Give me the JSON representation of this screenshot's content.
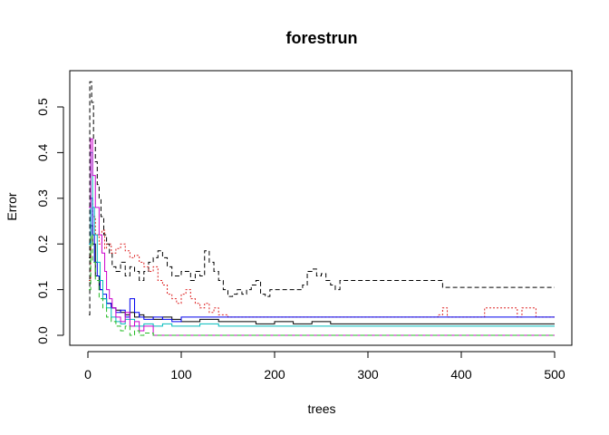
{
  "chart_data": {
    "type": "line",
    "title": "forestrun",
    "xlabel": "trees",
    "ylabel": "Error",
    "xlim": [
      0,
      500
    ],
    "ylim": [
      0,
      0.55
    ],
    "x_ticks": [
      0,
      100,
      200,
      300,
      400,
      500
    ],
    "y_ticks": [
      0.0,
      0.1,
      0.2,
      0.3,
      0.4,
      0.5
    ],
    "x_tick_labels": [
      "0",
      "100",
      "200",
      "300",
      "400",
      "500"
    ],
    "y_tick_labels": [
      "0.0",
      "0.1",
      "0.2",
      "0.3",
      "0.4",
      "0.5"
    ],
    "grid": false,
    "legend": "none",
    "series": [
      {
        "color": "#000000",
        "dash": "solid",
        "points": [
          [
            1,
            0.17
          ],
          [
            3,
            0.24
          ],
          [
            5,
            0.2
          ],
          [
            8,
            0.13
          ],
          [
            12,
            0.1
          ],
          [
            16,
            0.08
          ],
          [
            20,
            0.07
          ],
          [
            25,
            0.06
          ],
          [
            30,
            0.055
          ],
          [
            35,
            0.05
          ],
          [
            40,
            0.045
          ],
          [
            45,
            0.05
          ],
          [
            50,
            0.04
          ],
          [
            55,
            0.045
          ],
          [
            60,
            0.04
          ],
          [
            70,
            0.035
          ],
          [
            80,
            0.04
          ],
          [
            90,
            0.035
          ],
          [
            100,
            0.03
          ],
          [
            110,
            0.03
          ],
          [
            120,
            0.035
          ],
          [
            140,
            0.03
          ],
          [
            160,
            0.03
          ],
          [
            180,
            0.025
          ],
          [
            200,
            0.03
          ],
          [
            220,
            0.025
          ],
          [
            240,
            0.03
          ],
          [
            260,
            0.025
          ],
          [
            300,
            0.025
          ],
          [
            350,
            0.025
          ],
          [
            400,
            0.025
          ],
          [
            450,
            0.025
          ],
          [
            500,
            0.025
          ]
        ]
      },
      {
        "color": "#000000",
        "dash": "dashed",
        "points": [
          [
            1,
            0.045
          ],
          [
            2,
            0.555
          ],
          [
            4,
            0.51
          ],
          [
            6,
            0.43
          ],
          [
            8,
            0.38
          ],
          [
            10,
            0.33
          ],
          [
            12,
            0.3
          ],
          [
            14,
            0.26
          ],
          [
            17,
            0.22
          ],
          [
            20,
            0.2
          ],
          [
            23,
            0.18
          ],
          [
            26,
            0.15
          ],
          [
            30,
            0.14
          ],
          [
            35,
            0.16
          ],
          [
            40,
            0.13
          ],
          [
            45,
            0.15
          ],
          [
            50,
            0.14
          ],
          [
            55,
            0.12
          ],
          [
            60,
            0.14
          ],
          [
            65,
            0.16
          ],
          [
            70,
            0.17
          ],
          [
            75,
            0.185
          ],
          [
            80,
            0.17
          ],
          [
            85,
            0.15
          ],
          [
            90,
            0.13
          ],
          [
            100,
            0.14
          ],
          [
            110,
            0.12
          ],
          [
            115,
            0.14
          ],
          [
            120,
            0.13
          ],
          [
            125,
            0.185
          ],
          [
            130,
            0.16
          ],
          [
            135,
            0.14
          ],
          [
            140,
            0.12
          ],
          [
            145,
            0.1
          ],
          [
            150,
            0.085
          ],
          [
            155,
            0.09
          ],
          [
            160,
            0.1
          ],
          [
            165,
            0.09
          ],
          [
            170,
            0.1
          ],
          [
            175,
            0.11
          ],
          [
            180,
            0.12
          ],
          [
            185,
            0.09
          ],
          [
            190,
            0.085
          ],
          [
            195,
            0.1
          ],
          [
            200,
            0.1
          ],
          [
            210,
            0.1
          ],
          [
            220,
            0.1
          ],
          [
            230,
            0.11
          ],
          [
            235,
            0.14
          ],
          [
            240,
            0.145
          ],
          [
            245,
            0.13
          ],
          [
            250,
            0.135
          ],
          [
            255,
            0.12
          ],
          [
            260,
            0.11
          ],
          [
            265,
            0.1
          ],
          [
            270,
            0.12
          ],
          [
            280,
            0.12
          ],
          [
            300,
            0.12
          ],
          [
            320,
            0.12
          ],
          [
            340,
            0.12
          ],
          [
            360,
            0.12
          ],
          [
            375,
            0.12
          ],
          [
            380,
            0.105
          ],
          [
            400,
            0.105
          ],
          [
            450,
            0.105
          ],
          [
            500,
            0.105
          ]
        ]
      },
      {
        "color": "#dd2222",
        "dash": "dotted",
        "points": [
          [
            1,
            0.12
          ],
          [
            3,
            0.3
          ],
          [
            5,
            0.26
          ],
          [
            8,
            0.22
          ],
          [
            12,
            0.2
          ],
          [
            15,
            0.23
          ],
          [
            18,
            0.19
          ],
          [
            20,
            0.2
          ],
          [
            25,
            0.18
          ],
          [
            30,
            0.19
          ],
          [
            35,
            0.2
          ],
          [
            40,
            0.185
          ],
          [
            45,
            0.17
          ],
          [
            50,
            0.175
          ],
          [
            55,
            0.16
          ],
          [
            60,
            0.15
          ],
          [
            65,
            0.14
          ],
          [
            70,
            0.15
          ],
          [
            75,
            0.12
          ],
          [
            80,
            0.11
          ],
          [
            85,
            0.09
          ],
          [
            90,
            0.08
          ],
          [
            95,
            0.07
          ],
          [
            100,
            0.09
          ],
          [
            105,
            0.1
          ],
          [
            110,
            0.08
          ],
          [
            115,
            0.07
          ],
          [
            120,
            0.06
          ],
          [
            125,
            0.07
          ],
          [
            130,
            0.05
          ],
          [
            135,
            0.06
          ],
          [
            140,
            0.045
          ],
          [
            150,
            0.04
          ],
          [
            200,
            0.04
          ],
          [
            250,
            0.04
          ],
          [
            300,
            0.04
          ],
          [
            350,
            0.04
          ],
          [
            375,
            0.045
          ],
          [
            380,
            0.06
          ],
          [
            385,
            0.04
          ],
          [
            400,
            0.04
          ],
          [
            420,
            0.04
          ],
          [
            425,
            0.06
          ],
          [
            455,
            0.06
          ],
          [
            460,
            0.04
          ],
          [
            465,
            0.06
          ],
          [
            475,
            0.06
          ],
          [
            480,
            0.04
          ],
          [
            500,
            0.04
          ]
        ]
      },
      {
        "color": "#0000ee",
        "dash": "solid",
        "points": [
          [
            1,
            0.2
          ],
          [
            3,
            0.3
          ],
          [
            5,
            0.22
          ],
          [
            7,
            0.16
          ],
          [
            10,
            0.13
          ],
          [
            13,
            0.1
          ],
          [
            16,
            0.09
          ],
          [
            20,
            0.07
          ],
          [
            25,
            0.06
          ],
          [
            30,
            0.05
          ],
          [
            35,
            0.055
          ],
          [
            40,
            0.04
          ],
          [
            45,
            0.08
          ],
          [
            50,
            0.05
          ],
          [
            55,
            0.04
          ],
          [
            60,
            0.035
          ],
          [
            70,
            0.04
          ],
          [
            80,
            0.035
          ],
          [
            90,
            0.03
          ],
          [
            100,
            0.04
          ],
          [
            120,
            0.04
          ],
          [
            140,
            0.04
          ],
          [
            160,
            0.04
          ],
          [
            180,
            0.04
          ],
          [
            200,
            0.04
          ],
          [
            220,
            0.04
          ],
          [
            240,
            0.04
          ],
          [
            300,
            0.04
          ],
          [
            400,
            0.04
          ],
          [
            500,
            0.04
          ]
        ]
      },
      {
        "color": "#00bbbb",
        "dash": "solid",
        "points": [
          [
            1,
            0.2
          ],
          [
            3,
            0.4
          ],
          [
            5,
            0.28
          ],
          [
            7,
            0.22
          ],
          [
            10,
            0.16
          ],
          [
            13,
            0.12
          ],
          [
            16,
            0.08
          ],
          [
            20,
            0.06
          ],
          [
            25,
            0.04
          ],
          [
            30,
            0.03
          ],
          [
            35,
            0.025
          ],
          [
            40,
            0.035
          ],
          [
            50,
            0.02
          ],
          [
            60,
            0.025
          ],
          [
            70,
            0.02
          ],
          [
            80,
            0.025
          ],
          [
            90,
            0.02
          ],
          [
            100,
            0.02
          ],
          [
            120,
            0.025
          ],
          [
            140,
            0.02
          ],
          [
            160,
            0.02
          ],
          [
            200,
            0.02
          ],
          [
            300,
            0.02
          ],
          [
            400,
            0.02
          ],
          [
            500,
            0.02
          ]
        ]
      },
      {
        "color": "#cc00cc",
        "dash": "solid",
        "points": [
          [
            1,
            0.28
          ],
          [
            3,
            0.43
          ],
          [
            5,
            0.35
          ],
          [
            8,
            0.28
          ],
          [
            12,
            0.22
          ],
          [
            15,
            0.18
          ],
          [
            18,
            0.14
          ],
          [
            20,
            0.1
          ],
          [
            23,
            0.08
          ],
          [
            26,
            0.06
          ],
          [
            30,
            0.04
          ],
          [
            35,
            0.03
          ],
          [
            40,
            0.05
          ],
          [
            45,
            0.02
          ],
          [
            50,
            0.03
          ],
          [
            55,
            0.01
          ],
          [
            60,
            0.02
          ],
          [
            70,
            0.0
          ],
          [
            100,
            0.0
          ],
          [
            150,
            0.0
          ],
          [
            200,
            0.0
          ],
          [
            300,
            0.0
          ],
          [
            400,
            0.0
          ],
          [
            500,
            0.0
          ]
        ]
      },
      {
        "color": "#22bb22",
        "dash": "dashed",
        "points": [
          [
            1,
            0.1
          ],
          [
            3,
            0.22
          ],
          [
            5,
            0.16
          ],
          [
            8,
            0.12
          ],
          [
            12,
            0.08
          ],
          [
            16,
            0.06
          ],
          [
            20,
            0.04
          ],
          [
            25,
            0.03
          ],
          [
            30,
            0.02
          ],
          [
            35,
            0.01
          ],
          [
            40,
            0.02
          ],
          [
            45,
            0.0
          ],
          [
            50,
            0.01
          ],
          [
            55,
            0.0
          ],
          [
            60,
            0.005
          ],
          [
            70,
            0.0
          ],
          [
            100,
            0.0
          ],
          [
            150,
            0.0
          ],
          [
            200,
            0.0
          ],
          [
            300,
            0.0
          ],
          [
            400,
            0.0
          ],
          [
            500,
            0.0
          ]
        ]
      }
    ]
  }
}
